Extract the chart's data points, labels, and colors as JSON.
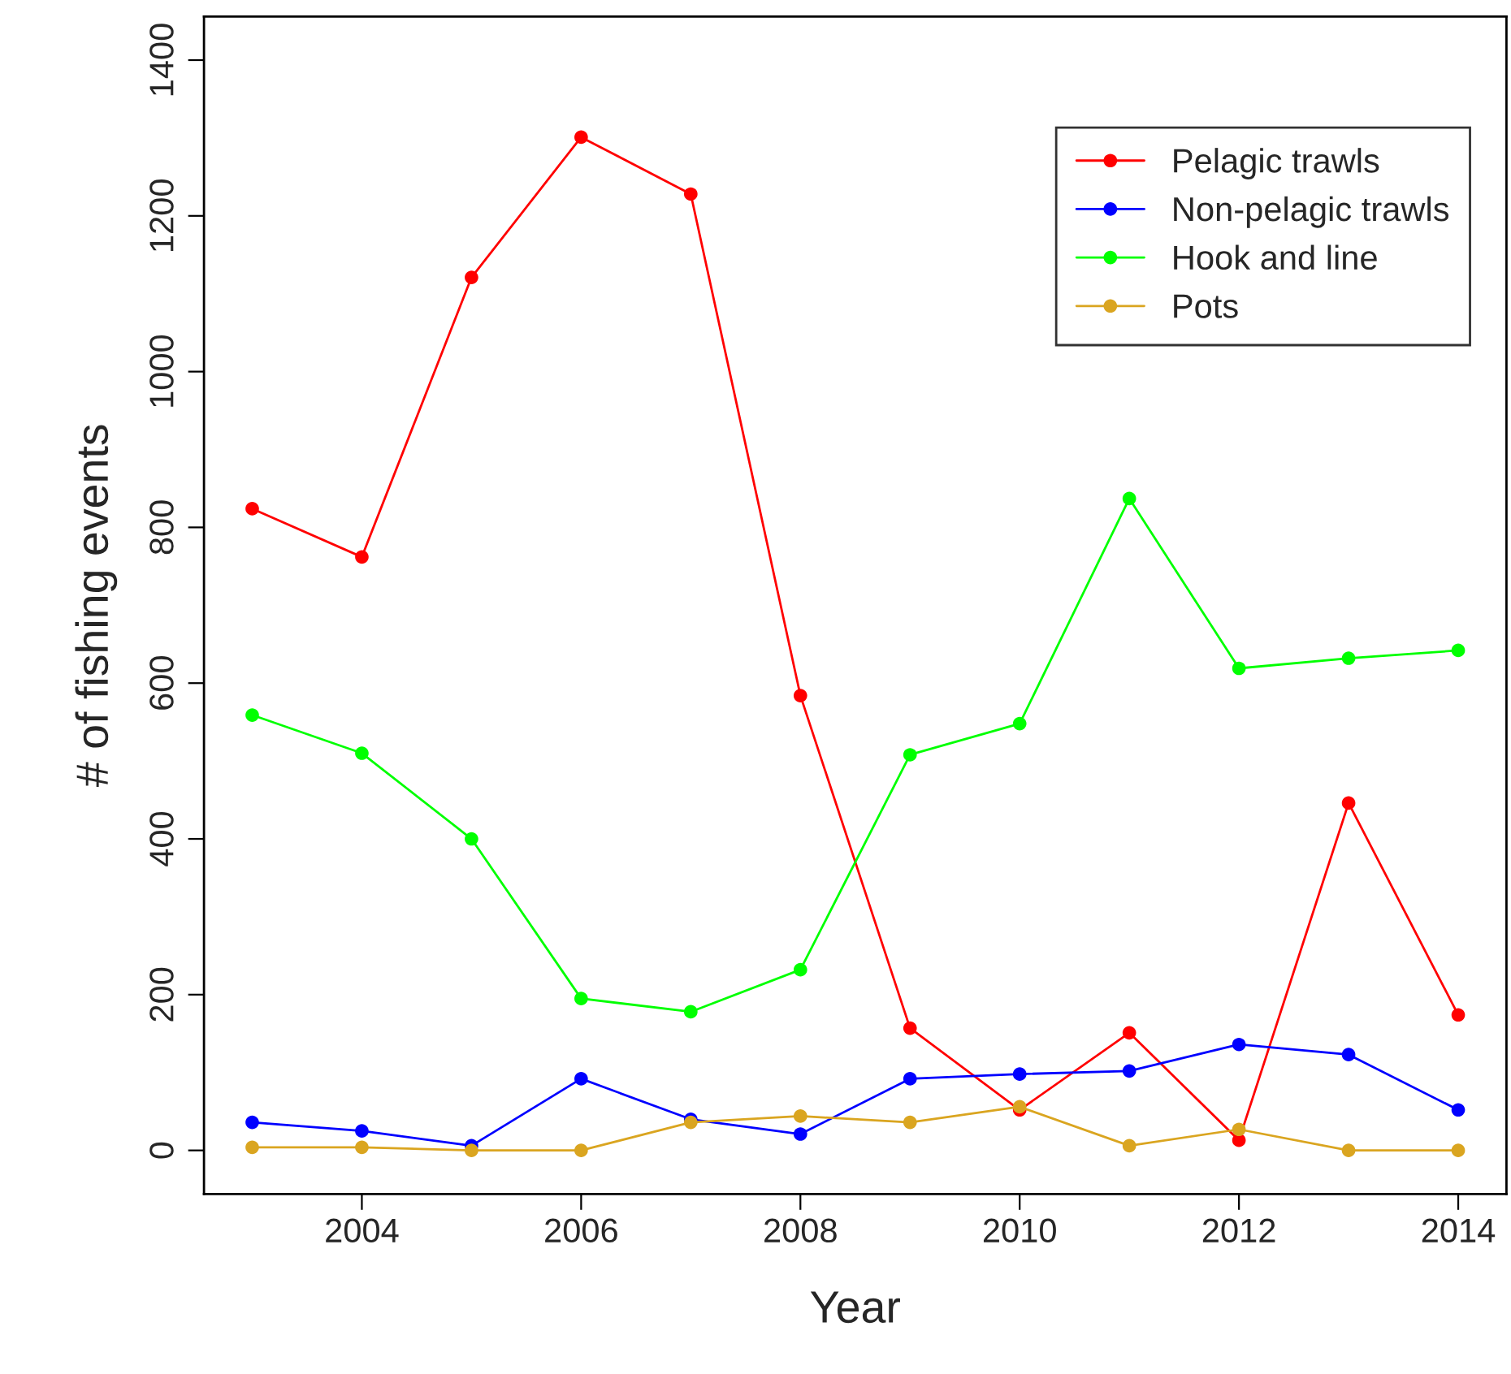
{
  "chart_data": {
    "type": "line",
    "xlabel": "Year",
    "ylabel": "# of fishing events",
    "x": [
      2003,
      2004,
      2005,
      2006,
      2007,
      2008,
      2009,
      2010,
      2011,
      2012,
      2013,
      2014
    ],
    "series": [
      {
        "name": "Pelagic trawls",
        "color": "#ff0000",
        "values": [
          824,
          762,
          1121,
          1301,
          1228,
          584,
          157,
          52,
          151,
          13,
          446,
          174
        ]
      },
      {
        "name": "Non-pelagic trawls",
        "color": "#0000ff",
        "values": [
          36,
          25,
          6,
          92,
          40,
          21,
          92,
          98,
          102,
          136,
          123,
          52
        ]
      },
      {
        "name": "Hook and line",
        "color": "#00ff00",
        "values": [
          559,
          510,
          400,
          195,
          178,
          232,
          508,
          548,
          837,
          619,
          632,
          642
        ]
      },
      {
        "name": "Pots",
        "color": "#daa520",
        "values": [
          4,
          4,
          0,
          0,
          36,
          44,
          36,
          56,
          6,
          27,
          0,
          0
        ]
      }
    ],
    "xlim": [
      2002.56,
      2014.44
    ],
    "ylim": [
      -56,
      1456
    ],
    "xticks": [
      2004,
      2006,
      2008,
      2010,
      2012,
      2014
    ],
    "yticks": [
      0,
      200,
      400,
      600,
      800,
      1000,
      1200,
      1400
    ],
    "marker": "circle",
    "line_style": "solid",
    "grid": false,
    "legend": "top right"
  }
}
